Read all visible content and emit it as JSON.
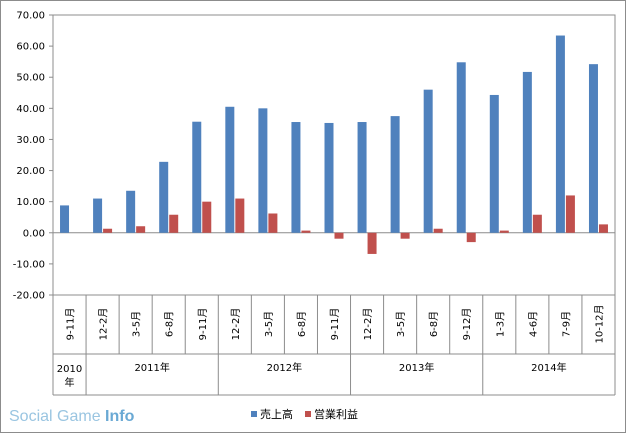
{
  "colors": {
    "sales": "#4f81bd",
    "profit": "#c0504d",
    "grid": "#8c8c8c"
  },
  "watermark": {
    "part1": "Social Game ",
    "part2": "Info"
  },
  "chart_data": {
    "type": "bar",
    "title": "",
    "ylim": [
      -20,
      70
    ],
    "yticks": [
      "-20.00",
      "-10.00",
      "0.00",
      "10.00",
      "20.00",
      "30.00",
      "40.00",
      "50.00",
      "60.00",
      "70.00"
    ],
    "ytick_values": [
      -20,
      -10,
      0,
      10,
      20,
      30,
      40,
      50,
      60,
      70
    ],
    "categories": [
      "9-11月",
      "12-2月",
      "3-5月",
      "6-8月",
      "9-11月",
      "12-2月",
      "3-5月",
      "6-8月",
      "9-11月",
      "12-2月",
      "3-5月",
      "6-8月",
      "9-12月",
      "1-3月",
      "4-6月",
      "7-9月",
      "10-12月"
    ],
    "year_groups": [
      {
        "label": "2010\n年",
        "count": 1
      },
      {
        "label": "2011年",
        "count": 4
      },
      {
        "label": "2012年",
        "count": 4
      },
      {
        "label": "2013年",
        "count": 4
      },
      {
        "label": "2014年",
        "count": 4
      }
    ],
    "series": [
      {
        "name": "売上高",
        "values": [
          8.8,
          11.0,
          13.5,
          22.8,
          35.7,
          40.5,
          40.0,
          35.6,
          35.3,
          35.6,
          37.5,
          46.0,
          54.8,
          44.3,
          51.7,
          63.4,
          54.2
        ]
      },
      {
        "name": "営業利益",
        "values": [
          0.0,
          1.3,
          2.1,
          5.8,
          10.0,
          11.0,
          6.2,
          0.7,
          -1.9,
          -6.8,
          -1.9,
          1.3,
          -3.0,
          0.7,
          5.8,
          12.0,
          2.7
        ]
      }
    ],
    "grid": true,
    "legend": "bottom"
  }
}
